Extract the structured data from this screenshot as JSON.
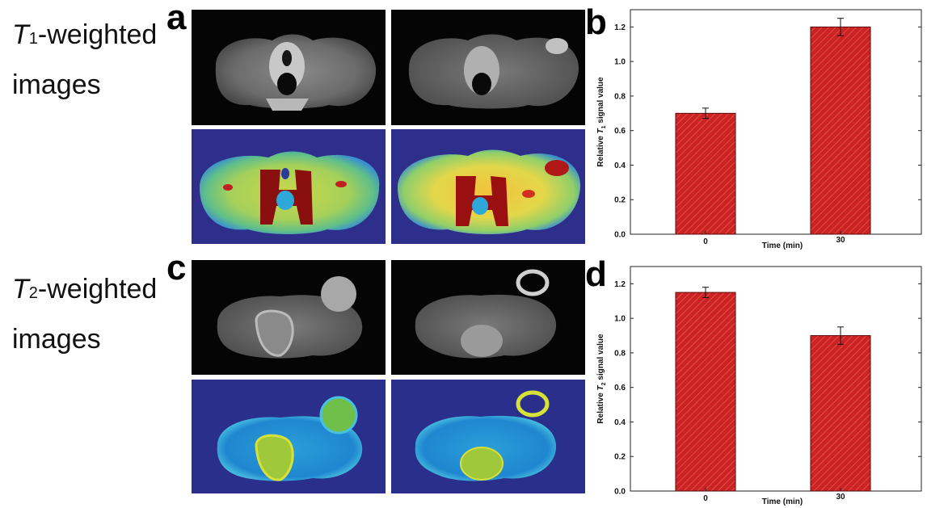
{
  "row_labels": {
    "t1": {
      "symbol": "T",
      "sub": "1",
      "rest": "-weighted",
      "line2": "images"
    },
    "t2": {
      "symbol": "T",
      "sub": "2",
      "rest": "-weighted",
      "line2": "images"
    }
  },
  "panel_letters": {
    "a": "a",
    "b": "b",
    "c": "c",
    "d": "d"
  },
  "colors": {
    "bar_fill": "#cc2222",
    "bar_stroke": "#5a0a0a",
    "hatch": "#e86a6a"
  },
  "chart_data": [
    {
      "type": "bar",
      "panel": "b",
      "categories": [
        "0",
        "30"
      ],
      "values": [
        0.7,
        1.2
      ],
      "errors": [
        0.03,
        0.05
      ],
      "xlabel": "Time (min)",
      "ylabel_prefix": "Relative ",
      "ylabel_symbol": "T",
      "ylabel_sub": "1",
      "ylabel_suffix": " signal value",
      "ylim": [
        0.0,
        1.3
      ],
      "yticks": [
        "0.0",
        "0.2",
        "0.4",
        "0.6",
        "0.8",
        "1.0",
        "1.2"
      ],
      "grid": false
    },
    {
      "type": "bar",
      "panel": "d",
      "categories": [
        "0",
        "30"
      ],
      "values": [
        1.15,
        0.9
      ],
      "errors": [
        0.03,
        0.05
      ],
      "xlabel": "Time (min)",
      "ylabel_prefix": "Relative ",
      "ylabel_symbol": "T",
      "ylabel_sub": "2",
      "ylabel_suffix": " signal value",
      "ylim": [
        0.0,
        1.3
      ],
      "yticks": [
        "0.0",
        "0.2",
        "0.4",
        "0.6",
        "0.8",
        "1.0",
        "1.2"
      ],
      "grid": false
    }
  ]
}
